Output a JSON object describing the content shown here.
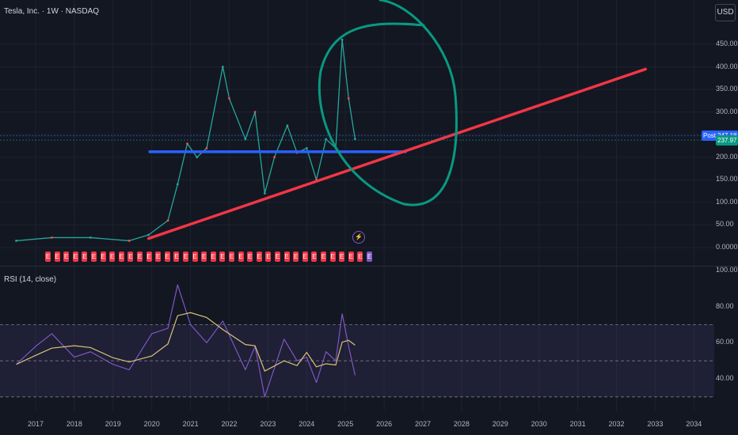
{
  "chart": {
    "title": "Tesla, Inc. · 1W · NASDAQ",
    "currency_button": "USD",
    "post_label": "Post",
    "post_price": "247.18",
    "last_price": "237.97",
    "colors": {
      "background": "#131722",
      "trend_line": "#f23645",
      "support_line": "#2962ff",
      "highlight_circle": "#089981",
      "post_badge": "#2962ff",
      "last_badge": "#089981",
      "rsi_line": "#7e57c2",
      "rsi_ma": "#d9c37a",
      "earnings_badge": "#f23645"
    }
  },
  "chart_data": [
    {
      "type": "line",
      "title": "Tesla, Inc. · 1W · NASDAQ",
      "xlabel": "",
      "ylabel": "",
      "x_ticks": [
        "2017",
        "2018",
        "2019",
        "2020",
        "2021",
        "2022",
        "2023",
        "2024",
        "2025",
        "2026",
        "2027",
        "2028",
        "2029",
        "2030",
        "2031",
        "2032",
        "2033",
        "2034"
      ],
      "y_ticks": [
        "450.00",
        "400.00",
        "350.00",
        "300.00",
        "250.00",
        "200.00",
        "150.00",
        "100.00",
        "50.00",
        "0.0000"
      ],
      "ylim": [
        0,
        470
      ],
      "series": [
        {
          "x": [
            "2016-07",
            "2017-06",
            "2018-06",
            "2019-06",
            "2019-12",
            "2020-06",
            "2020-09",
            "2020-12",
            "2021-03",
            "2021-06",
            "2021-11",
            "2022-01",
            "2022-06",
            "2022-09",
            "2022-12",
            "2023-03",
            "2023-07",
            "2023-10",
            "2024-01",
            "2024-04",
            "2024-07",
            "2024-10",
            "2024-12",
            "2025-02",
            "2025-04"
          ],
          "values": [
            15,
            22,
            22,
            15,
            28,
            60,
            140,
            230,
            200,
            220,
            400,
            330,
            240,
            300,
            120,
            200,
            270,
            210,
            220,
            150,
            240,
            220,
            460,
            330,
            240
          ]
        }
      ],
      "annotations": {
        "support_level": 212,
        "trend_line": {
          "from": [
            "2019-12",
            20
          ],
          "to": [
            "2032-10",
            395
          ]
        },
        "post_price": 247.18,
        "last_price": 237.97
      }
    },
    {
      "type": "line",
      "title": "RSI (14, close)",
      "y_ticks": [
        "100.00",
        "80.00",
        "60.00",
        "40.00"
      ],
      "ylim": [
        25,
        100
      ],
      "bands": [
        30,
        50,
        70
      ],
      "series": [
        {
          "x": [
            "2016-07",
            "2017-01",
            "2017-06",
            "2018-01",
            "2018-06",
            "2019-01",
            "2019-06",
            "2020-01",
            "2020-06",
            "2020-09",
            "2021-01",
            "2021-06",
            "2021-11",
            "2022-06",
            "2022-09",
            "2022-12",
            "2023-06",
            "2023-10",
            "2024-01",
            "2024-04",
            "2024-07",
            "2024-10",
            "2024-12",
            "2025-02",
            "2025-04"
          ],
          "values": [
            48,
            58,
            65,
            52,
            55,
            48,
            45,
            65,
            68,
            92,
            70,
            60,
            72,
            45,
            58,
            30,
            62,
            50,
            52,
            38,
            55,
            50,
            76,
            58,
            42
          ]
        }
      ]
    }
  ],
  "earnings_badges": [
    "E",
    "E",
    "E",
    "E",
    "E",
    "E",
    "E",
    "E",
    "E",
    "E",
    "E",
    "E",
    "E",
    "E",
    "E",
    "E",
    "E",
    "E",
    "E",
    "E",
    "E",
    "E",
    "E",
    "E",
    "E",
    "E",
    "E",
    "E",
    "E",
    "E",
    "E",
    "E",
    "E",
    "E",
    "E",
    "E"
  ]
}
